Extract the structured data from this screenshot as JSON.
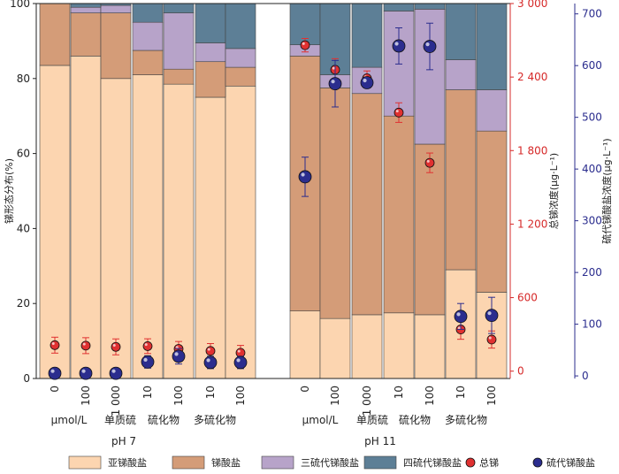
{
  "chart_data": {
    "type": "bar",
    "stacked": true,
    "left_axis": {
      "label": "锑形态分布(%)",
      "ylim": [
        0,
        100
      ],
      "ticks": [
        "0",
        "20",
        "40",
        "60",
        "80",
        "100"
      ]
    },
    "right_axis_1": {
      "label": "总锑浓度(μg·L⁻¹)",
      "ylim": [
        -60,
        3000
      ],
      "ticks": [
        "0",
        "600",
        "1 200",
        "1 800",
        "2 400",
        "3 000"
      ],
      "color": "#d62828"
    },
    "right_axis_2": {
      "label": "硫代锑酸盐浓度(μg·L⁻¹)",
      "ylim": [
        -5,
        720
      ],
      "ticks": [
        "0",
        "100",
        "200",
        "300",
        "400",
        "500",
        "600",
        "700"
      ],
      "color": "#2b2d8e"
    },
    "x_tick_labels": [
      "0",
      "100",
      "1 000",
      "10",
      "100",
      "10",
      "100",
      "0",
      "100",
      "1 000",
      "10",
      "100",
      "10",
      "100"
    ],
    "group_labels_row1": [
      {
        "text": "μmol/L",
        "group": "pH7"
      },
      {
        "text": "单质硫",
        "group": "pH7"
      },
      {
        "text": "硫化物",
        "group": "pH7"
      },
      {
        "text": "多硫化物",
        "group": "pH7"
      },
      {
        "text": "μmol/L",
        "group": "pH11"
      },
      {
        "text": "单质硫",
        "group": "pH11"
      },
      {
        "text": "硫化物",
        "group": "pH11"
      },
      {
        "text": "多硫化物",
        "group": "pH11"
      }
    ],
    "group_labels_row2": [
      "pH  7",
      "pH  11"
    ],
    "series": [
      {
        "name": "亚锑酸盐",
        "color": "#fcd5b0",
        "values": [
          83.5,
          86,
          80,
          81,
          78.5,
          75,
          78,
          18,
          16,
          17,
          17.5,
          17,
          29,
          23
        ]
      },
      {
        "name": "锑酸盐",
        "color": "#d49c78",
        "values": [
          16.5,
          11.5,
          17.5,
          6.5,
          4,
          9.5,
          5,
          68,
          61.5,
          59,
          52.5,
          45.5,
          48,
          43
        ]
      },
      {
        "name": "三硫代锑酸盐",
        "color": "#b7a3c9",
        "values": [
          0,
          1.5,
          2,
          7.5,
          15,
          5,
          5,
          3,
          3.5,
          7,
          28,
          36,
          8,
          11
        ]
      },
      {
        "name": "四硫代锑酸盐",
        "color": "#5d7f96",
        "values": [
          0,
          1,
          0.5,
          5,
          2.5,
          10.5,
          12,
          11,
          19,
          17,
          2,
          1.5,
          15,
          23
        ]
      }
    ],
    "point_series": [
      {
        "name": "总锑",
        "axis": "right_axis_1",
        "color": "#e03131",
        "values": [
          212,
          208,
          198,
          204,
          182,
          165,
          150,
          2660,
          2460,
          2390,
          2110,
          1700,
          340,
          258
        ],
        "errors": [
          65,
          65,
          65,
          60,
          60,
          60,
          60,
          55,
          90,
          60,
          80,
          80,
          80,
          70
        ]
      },
      {
        "name": "硫代锑酸盐",
        "axis": "right_axis_2",
        "color": "#2b2d8e",
        "values": [
          5,
          5,
          5,
          27,
          38,
          26,
          26,
          385,
          565,
          567,
          638,
          637,
          115,
          117
        ],
        "errors": [
          0,
          0,
          0,
          12,
          15,
          12,
          12,
          38,
          45,
          0,
          35,
          45,
          25,
          35
        ]
      }
    ],
    "legend": {
      "placement": "bottom",
      "items": [
        {
          "name": "亚锑酸盐",
          "kind": "bar",
          "color": "#fcd5b0"
        },
        {
          "name": "锑酸盐",
          "kind": "bar",
          "color": "#d49c78"
        },
        {
          "name": "三硫代锑酸盐",
          "kind": "bar",
          "color": "#b7a3c9"
        },
        {
          "name": "四硫代锑酸盐",
          "kind": "bar",
          "color": "#5d7f96"
        },
        {
          "name": "总锑",
          "kind": "point",
          "color": "#e03131"
        },
        {
          "name": "硫代锑酸盐",
          "kind": "point",
          "color": "#2b2d8e"
        }
      ]
    },
    "grid": false
  }
}
